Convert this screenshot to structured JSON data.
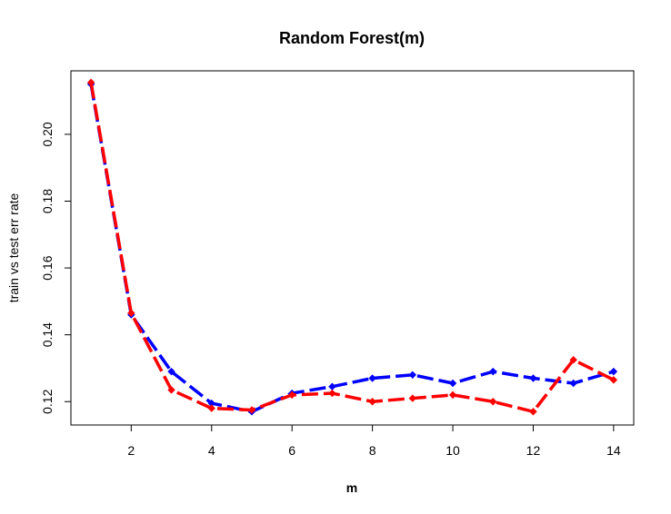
{
  "chart_data": {
    "type": "line",
    "title": "Random Forest(m)",
    "xlabel": "m",
    "ylabel": "train vs test err rate",
    "x": [
      1,
      2,
      3,
      4,
      5,
      6,
      7,
      8,
      9,
      10,
      11,
      12,
      13,
      14
    ],
    "xlim": [
      0.5,
      14.5
    ],
    "ylim": [
      0.113,
      0.219
    ],
    "x_ticks": [
      "2",
      "4",
      "6",
      "8",
      "10",
      "12",
      "14"
    ],
    "y_ticks": [
      "0.12",
      "0.14",
      "0.16",
      "0.18",
      "0.20"
    ],
    "grid": false,
    "series": [
      {
        "color": "#0000FF",
        "line_style": "dashed",
        "marker": "diamond",
        "values": [
          0.215,
          0.146,
          0.129,
          0.1195,
          0.117,
          0.1225,
          0.1245,
          0.127,
          0.128,
          0.1255,
          0.129,
          0.127,
          0.1255,
          0.129
        ]
      },
      {
        "color": "#FF0000",
        "line_style": "dashed",
        "marker": "diamond",
        "values": [
          0.2155,
          0.1465,
          0.1235,
          0.118,
          0.1175,
          0.122,
          0.1225,
          0.12,
          0.121,
          0.122,
          0.12,
          0.117,
          0.1325,
          0.1265
        ]
      }
    ]
  }
}
